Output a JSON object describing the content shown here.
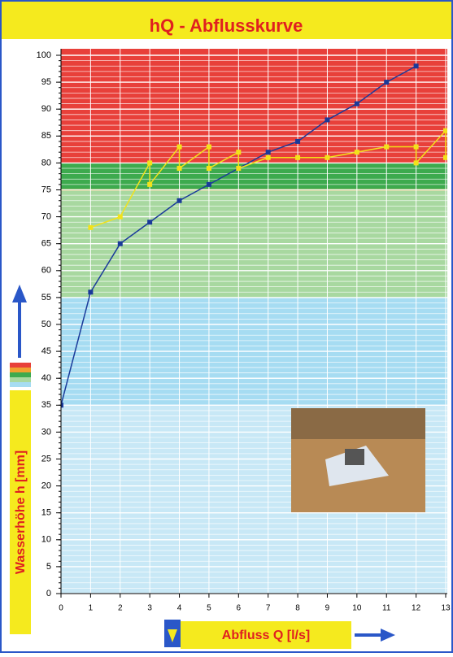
{
  "chart_data": {
    "type": "line",
    "title": "hQ - Abflusskurve",
    "x_label": "Abfluss Q [l/s]",
    "y_label": "Wasserhöhe h [mm]",
    "xlim": [
      0,
      13
    ],
    "ylim": [
      0,
      100
    ],
    "xticks": [
      0,
      1,
      2,
      3,
      4,
      5,
      6,
      7,
      8,
      9,
      10,
      11,
      12,
      13
    ],
    "yticks": [
      0,
      5,
      10,
      15,
      20,
      25,
      30,
      35,
      40,
      45,
      50,
      55,
      60,
      65,
      70,
      75,
      80,
      85,
      90,
      95,
      100
    ],
    "grid": true,
    "zones": [
      {
        "from": 0,
        "to": 35,
        "color": "#c8e8f6"
      },
      {
        "from": 35,
        "to": 55,
        "color": "#a6dcf2"
      },
      {
        "from": 55,
        "to": 75,
        "color": "#a8d8a0"
      },
      {
        "from": 75,
        "to": 100,
        "color": "#e8403a"
      },
      {
        "from": 75,
        "to": 80,
        "color": "#3daa4e"
      }
    ],
    "series": [
      {
        "color": "#1a3a9a",
        "x": [
          0,
          1,
          2,
          3,
          4,
          5,
          6,
          7,
          8,
          9,
          10,
          11,
          12
        ],
        "values": [
          35,
          56,
          65,
          69,
          73,
          76,
          79,
          82,
          84,
          88,
          91,
          95,
          98
        ]
      },
      {
        "color": "#f2e21a",
        "x": [
          1,
          2,
          3,
          3,
          4,
          4,
          5,
          5,
          6,
          6,
          7,
          8,
          9,
          10,
          11,
          12,
          12,
          13,
          13
        ],
        "values": [
          68,
          70,
          80,
          76,
          83,
          79,
          83,
          79,
          82,
          79,
          81,
          81,
          81,
          82,
          83,
          83,
          80,
          86,
          81
        ]
      }
    ]
  }
}
